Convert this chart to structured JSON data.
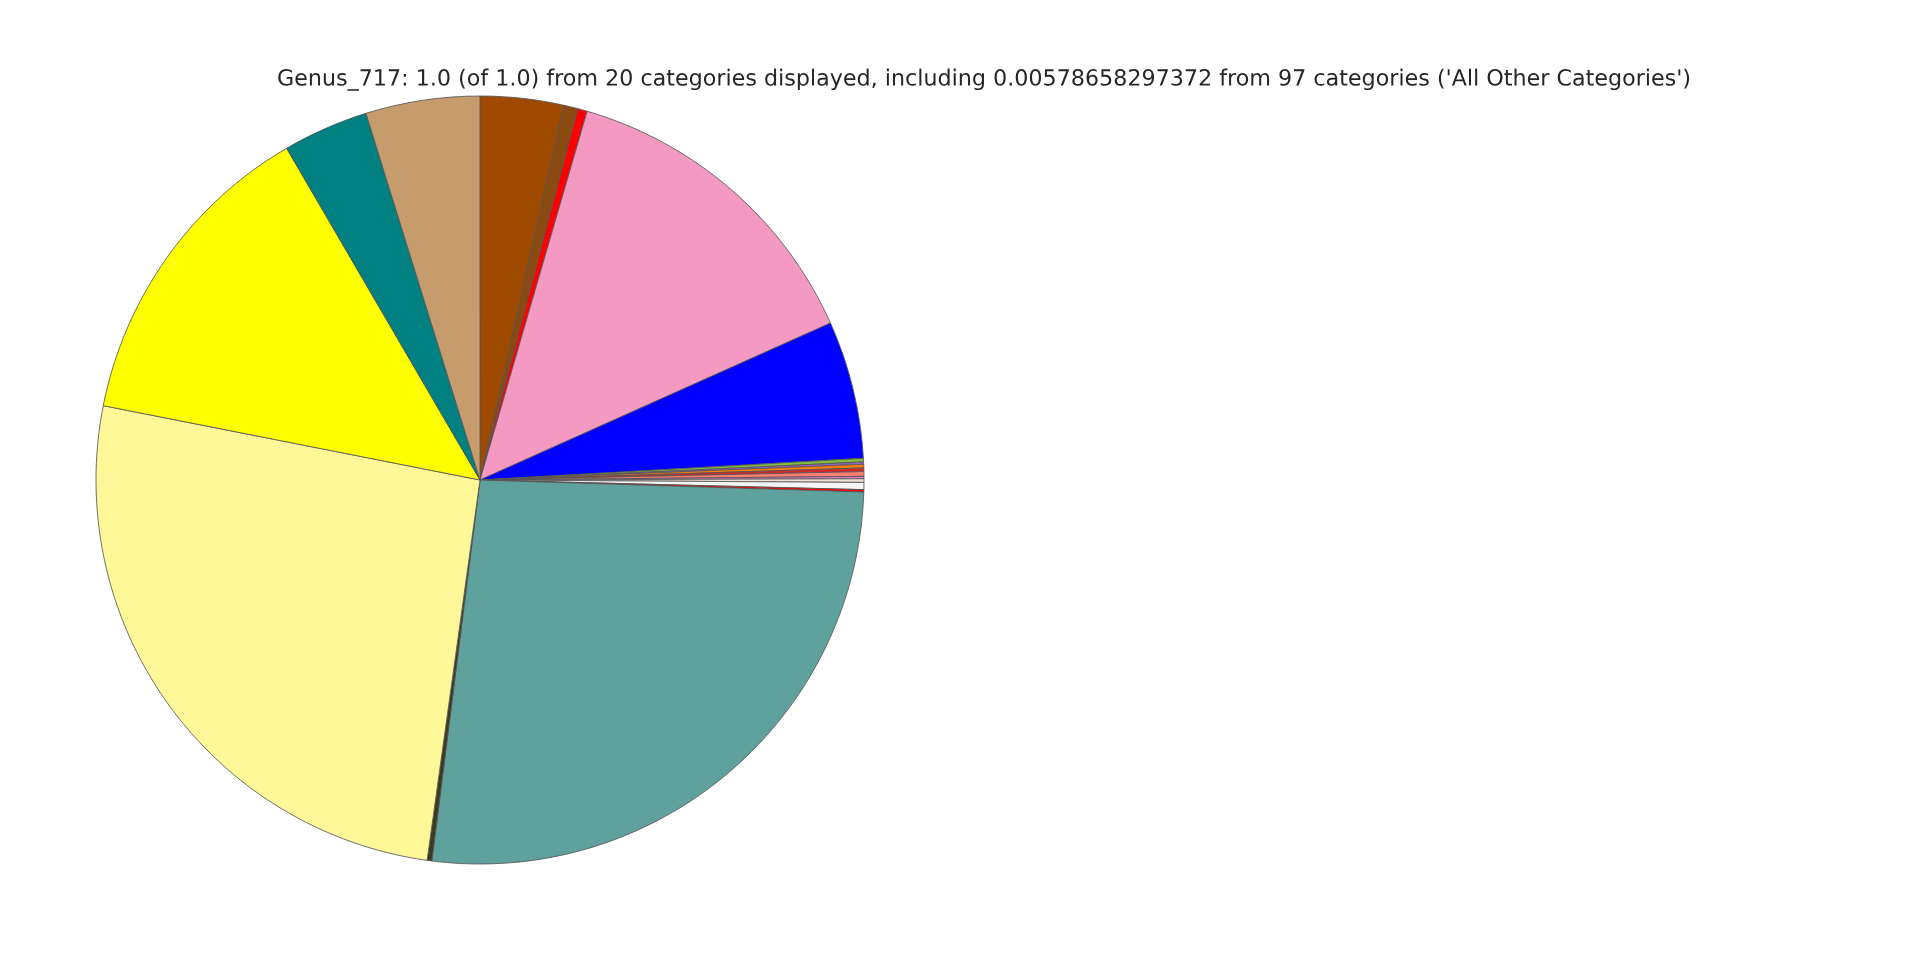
{
  "chart_data": {
    "type": "pie",
    "title": "Genus_717: 1.0 (of 1.0) from 20 categories displayed, including 0.00578658297372 from 97 categories ('All Other Categories')",
    "categories": [
      null,
      null,
      null,
      null,
      null,
      null,
      null,
      null,
      null,
      null,
      null,
      null,
      null,
      null,
      null,
      null,
      null,
      null,
      null,
      null
    ],
    "values": [
      3.5,
      0.6,
      0.4,
      13.8,
      5.8,
      0.15,
      0.1,
      0.15,
      0.15,
      0.2,
      0.1,
      0.15,
      0.3,
      0.1,
      26.5,
      0.2,
      25.9,
      13.5,
      3.6,
      4.8
    ],
    "colors": [
      "#a04a00",
      "#8a4a10",
      "#ff0000",
      "#f49ac2",
      "#0000ff",
      "#7fbf3f",
      "#9467bd",
      "#ff7f0e",
      "#d62728",
      "#fa8072",
      "#e377c2",
      "#f0e0d8",
      "#f5f5f5",
      "#ff0000",
      "#5fa19d",
      "#3b3b1f",
      "#fff899",
      "#ffff00",
      "#008080",
      "#c69c6d"
    ]
  }
}
